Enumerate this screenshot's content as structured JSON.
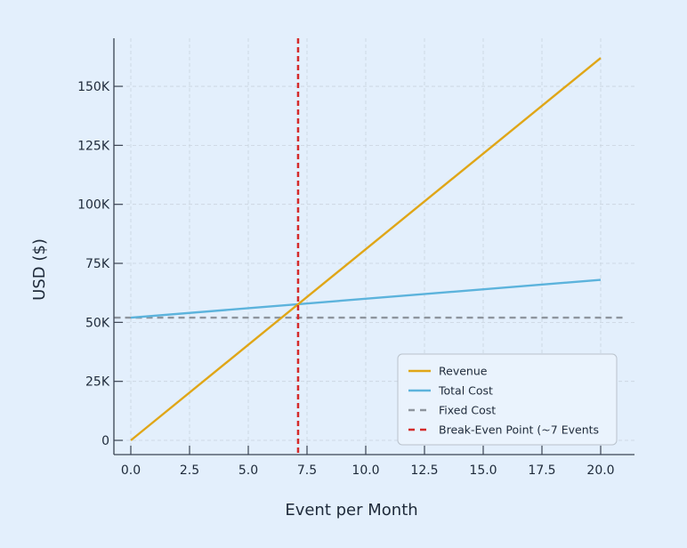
{
  "chart_data": {
    "type": "line",
    "title": "",
    "xlabel": "Event per Month",
    "ylabel": "USD ($)",
    "xlim": [
      -0.7,
      21.0
    ],
    "ylim": [
      -6000,
      170000
    ],
    "xticks": [
      0,
      2.5,
      5,
      7.5,
      10,
      12.5,
      15,
      17.5,
      20
    ],
    "xtick_labels": [
      "0.0",
      "2.5",
      "5.0",
      "7.5",
      "10.0",
      "12.5",
      "15.0",
      "17.5",
      "20.0"
    ],
    "yticks": [
      0,
      25000,
      50000,
      75000,
      100000,
      125000,
      150000
    ],
    "ytick_labels": [
      "0",
      "25K",
      "50K",
      "75K",
      "100K",
      "125K",
      "150K"
    ],
    "grid": true,
    "legend_position": "bottom-right",
    "series": [
      {
        "name": "Revenue",
        "color": "#e0a617",
        "style": "solid",
        "x": [
          0,
          20
        ],
        "y": [
          0,
          162000
        ]
      },
      {
        "name": "Total Cost",
        "color": "#5cb3dc",
        "style": "solid",
        "x": [
          0,
          20
        ],
        "y": [
          52000,
          68000
        ]
      },
      {
        "name": "Fixed Cost",
        "color": "#8e959e",
        "style": "dashed",
        "x": [
          -0.7,
          21.0
        ],
        "y": [
          52000,
          52000
        ]
      },
      {
        "name": "Break-Even Point (~7 Events",
        "color": "#d42a2a",
        "style": "dashed",
        "vline": 7.12
      }
    ]
  }
}
